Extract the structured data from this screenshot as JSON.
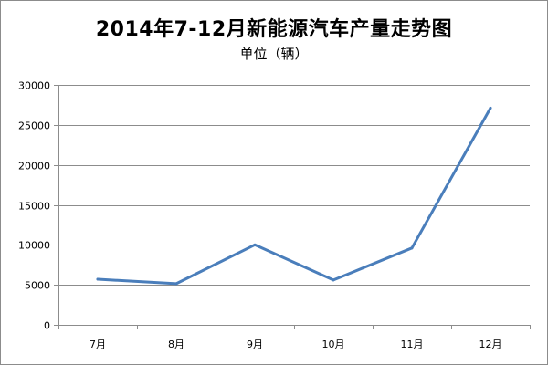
{
  "chart_data": {
    "type": "line",
    "title": "2014年7-12月新能源汽车产量走势图",
    "subtitle": "单位（辆）",
    "categories": [
      "7月",
      "8月",
      "9月",
      "10月",
      "11月",
      "12月"
    ],
    "series": [
      {
        "values": [
          5700,
          5150,
          10000,
          5600,
          9600,
          27100
        ]
      }
    ],
    "ylim": [
      0,
      30000
    ],
    "yticks": [
      "0",
      "5000",
      "10000",
      "15000",
      "20000",
      "25000",
      "30000"
    ],
    "grid": true,
    "line_color": "#4a7ebb"
  }
}
